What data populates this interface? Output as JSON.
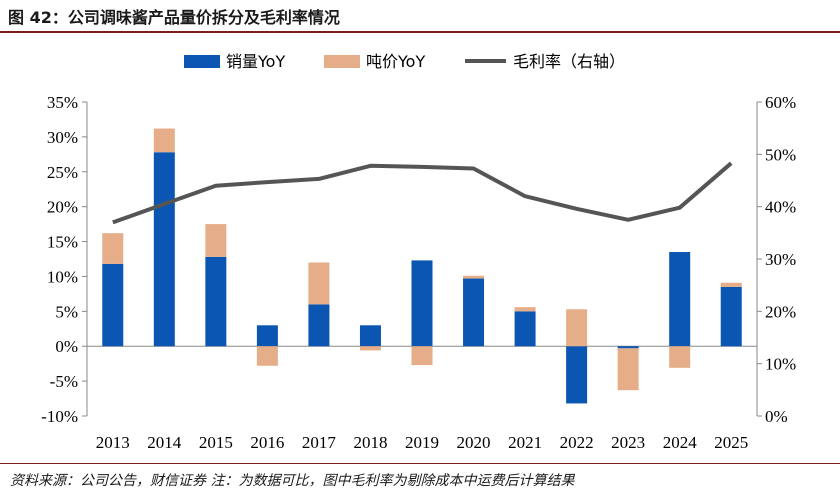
{
  "header": {
    "title": "图 42：公司调味酱产品量价拆分及毛利率情况"
  },
  "footer": {
    "source": "资料来源：公司公告，财信证券 注：为数据可比，图中毛利率为剔除成本中运费后计算结果"
  },
  "colors": {
    "volume": "#0b56b3",
    "price": "#e6ae88",
    "margin": "#555555",
    "rule": "#7f1d1d"
  },
  "chart_data": {
    "type": "bar",
    "categories": [
      "2013",
      "2014",
      "2015",
      "2016",
      "2017",
      "2018",
      "2019",
      "2020",
      "2021",
      "2022",
      "2023",
      "2024",
      "2025"
    ],
    "series": [
      {
        "name": "销量YoY",
        "type": "bar",
        "stack": true,
        "values": [
          11.8,
          27.8,
          12.8,
          3.0,
          6.0,
          3.0,
          12.3,
          9.7,
          5.0,
          -8.2,
          -0.3,
          13.5,
          8.5
        ]
      },
      {
        "name": "吨价YoY",
        "type": "bar",
        "stack": true,
        "values": [
          4.4,
          3.4,
          4.7,
          -2.8,
          6.0,
          -0.6,
          -2.7,
          0.4,
          0.6,
          5.3,
          -6.0,
          -3.1,
          0.6
        ]
      },
      {
        "name": "毛利率（右轴）",
        "type": "line",
        "axis": "right",
        "values": [
          37.0,
          40.5,
          44.0,
          44.7,
          45.3,
          47.8,
          47.6,
          47.3,
          42.0,
          39.6,
          37.5,
          39.8,
          48.3
        ]
      }
    ],
    "y_left": {
      "min": -10,
      "max": 35,
      "step": 5,
      "ticks": [
        "-10%",
        "-5%",
        "0%",
        "5%",
        "10%",
        "15%",
        "20%",
        "25%",
        "30%",
        "35%"
      ]
    },
    "y_right": {
      "min": 0,
      "max": 60,
      "step": 10,
      "ticks": [
        "0%",
        "10%",
        "20%",
        "30%",
        "40%",
        "50%",
        "60%"
      ]
    },
    "grid": false,
    "legend": "top-center"
  }
}
